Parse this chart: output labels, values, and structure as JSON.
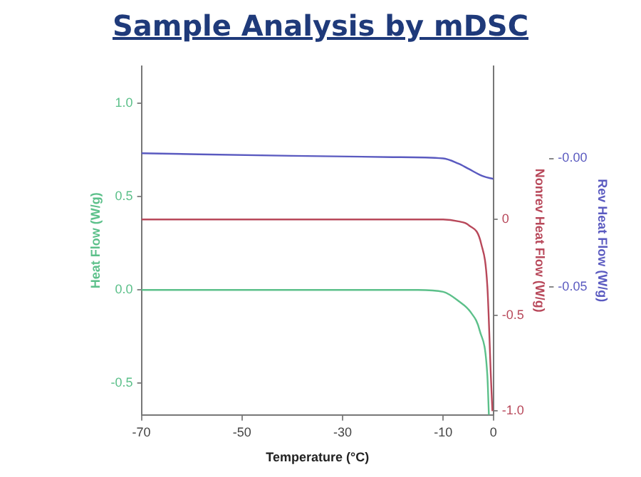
{
  "chart_data": {
    "type": "line",
    "title": "Sample Analysis by mDSC",
    "xlabel": "Temperature (°C)",
    "ylabel": "Heat Flow (W/g)",
    "y2label": "Nonrev Heat Flow (W/g)",
    "y3label": "Rev Heat Flow (W/g)",
    "xlim": [
      -70,
      0
    ],
    "xticks": [
      -70,
      -50,
      -30,
      -10,
      0
    ],
    "ylim": [
      -0.67,
      1.2
    ],
    "yticks": [
      {
        "value": 1,
        "label": "1.0"
      },
      {
        "value": 0.5,
        "label": "0.5"
      },
      {
        "value": 0,
        "label": "0.0"
      },
      {
        "value": -0.5,
        "label": "-0.5"
      }
    ],
    "y2lim": [
      -1.02,
      0.8
    ],
    "y2ticks": [
      0,
      -0.5,
      {
        "value": -1,
        "label": "-1.0"
      }
    ],
    "y3lim": [
      -0.1,
      0.036
    ],
    "y3ticks": [
      {
        "value": 0,
        "label": "-0.00"
      },
      -0.05
    ],
    "grid": false,
    "legend": false,
    "marker": "none",
    "line_style": "solid",
    "series": [
      {
        "color": "#5cc08a",
        "x": [
          -70,
          -30,
          -15,
          -10,
          -6.9,
          -4.5,
          -2.7,
          -1.2,
          -0.9
        ],
        "values": [
          0,
          0,
          0,
          -0.01,
          -0.06,
          -0.12,
          -0.22,
          -0.46,
          -0.67
        ]
      },
      {
        "color": "#b8485a",
        "axis": "y2",
        "x": [
          -70,
          -30,
          -10,
          -7,
          -4.9,
          -2.4,
          -1.2,
          -0.5,
          -0.2
        ],
        "values": [
          0,
          0,
          0,
          -0.01,
          -0.03,
          -0.13,
          -0.35,
          -0.82,
          -1
        ]
      },
      {
        "color": "#5a5ac0",
        "axis": "y3",
        "x": [
          -70,
          -40,
          -20,
          -10,
          -7,
          -5,
          -2,
          0
        ],
        "values": [
          0.002,
          0.001,
          0.0005,
          0,
          -0.002,
          -0.004,
          -0.007,
          -0.008
        ]
      }
    ]
  }
}
